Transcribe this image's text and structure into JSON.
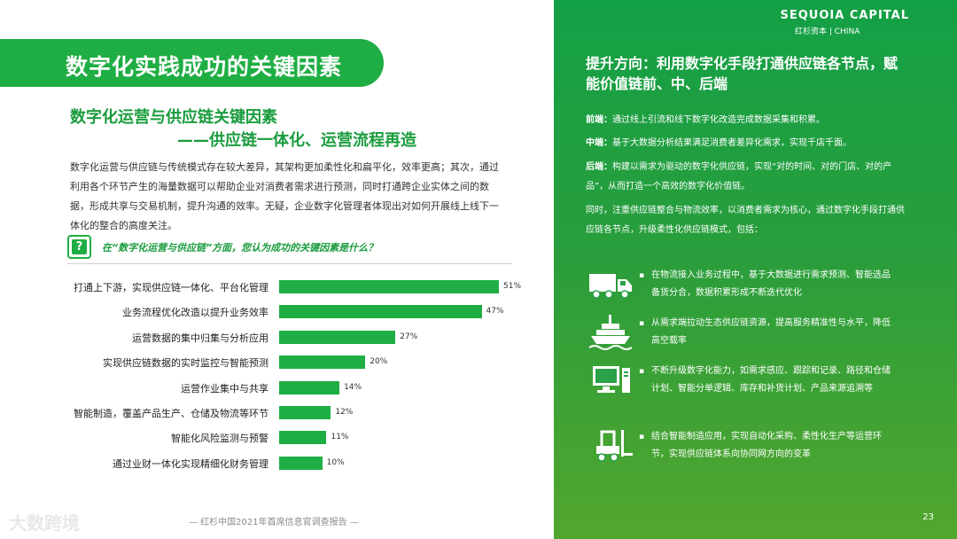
{
  "page": {
    "title": "数字化实践成功的关键因素",
    "subtitle_line1": "数字化运营与供应链关键因素",
    "subtitle_line2": "——供应链一体化、运营流程再造",
    "intro_text": "数字化运营与供应链与传统模式存在较大差异，其架构更加柔性化和扁平化，效率更高；其次，通过利用各个环节产生的海量数据可以帮助企业对消费者需求进行预测，同时打通跨企业实体之间的数据，形成共享与交易机制，提升沟通的效率。无疑，企业数字化管理者体现出对如何开展线上线下一体化的整合的高度关注。",
    "question_mark": "?",
    "question": "在“数字化运营与供应链”方面，您认为成功的关键因素是什么？",
    "footer": "— 红杉中国2021年首席信息官调查报告 —",
    "watermark": "大数跨境",
    "page_number": "23"
  },
  "brand": {
    "name": "SEQUOIA CAPITAL",
    "sub": "红杉资本 | CHINA"
  },
  "right": {
    "title": "提升方向：利用数字化手段打通供应链各节点，赋能价值链前、中、后端",
    "front_label": "前端：",
    "front_text": "通过线上引流和线下数字化改造完成数据采集和积累。",
    "mid_label": "中端：",
    "mid_text": "基于大数据分析结果满足消费者差异化需求，实现千店千面。",
    "back_label": "后端：",
    "back_text": "构建以需求为驱动的数字化供应链，实现“对的时间、对的门店、对的产品”，从而打造一个高效的数字化价值链。",
    "extra_text": "同时，注重供应链整合与物流效率，以消费者需求为核心，通过数字化手段打通供应链各节点，升级柔性化供应链模式，包括：",
    "bullets": [
      {
        "icon": "truck-icon",
        "text": "在物流接入业务过程中，基于大数据进行需求预测、智能选品备货分合，数据积累形成不断迭代优化"
      },
      {
        "icon": "ship-icon",
        "text": "从需求端拉动生态供应链资源，提高服务精准性与水平，降低高空载率"
      },
      {
        "icon": "computer-icon",
        "text": "不断升级数字化能力，如需求感应、跟踪和记录、路径和仓储计划、智能分单逻辑、库存和补货计划、产品来源追溯等"
      },
      {
        "icon": "forklift-icon",
        "text": "结合智能制造应用，实现自动化采购、柔性化生产等运营环节，实现供应链体系向协同网方向的变革"
      }
    ]
  },
  "colors": {
    "accent": "#1fae44",
    "panel_top": "#14a047",
    "panel_bottom": "#52a62e"
  },
  "chart_data": {
    "type": "bar",
    "orientation": "horizontal",
    "categories": [
      "打通上下游，实现供应链一体化、平台化管理",
      "业务流程优化改造以提升业务效率",
      "运营数据的集中归集与分析应用",
      "实现供应链数据的实时监控与智能预测",
      "运营作业集中与共享",
      "智能制造，覆盖产品生产、仓储及物流等环节",
      "智能化风险监测与预警",
      "通过业财一体化实现精细化财务管理"
    ],
    "values": [
      51,
      47,
      27,
      20,
      14,
      12,
      11,
      10
    ],
    "value_labels": [
      "51%",
      "47%",
      "27%",
      "20%",
      "14%",
      "12%",
      "11%",
      "10%"
    ],
    "title": "",
    "xlabel": "",
    "ylabel": "",
    "xlim": [
      0,
      51
    ]
  }
}
